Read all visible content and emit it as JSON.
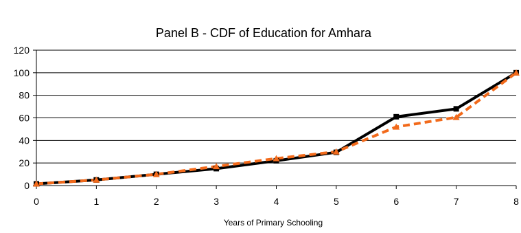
{
  "chart_data": {
    "type": "line",
    "title": "Panel B - CDF of Education for Amhara",
    "xlabel": "Years of Primary Schooling",
    "ylabel": "",
    "x": [
      0,
      1,
      2,
      3,
      4,
      5,
      6,
      7,
      8
    ],
    "xlim": [
      0,
      8
    ],
    "ylim": [
      0,
      120
    ],
    "yticks": [
      0,
      20,
      40,
      60,
      80,
      100,
      120
    ],
    "grid": "horizontal",
    "series": [
      {
        "color": "#000000",
        "style": "solid",
        "marker": "square",
        "values": [
          1.5,
          5,
          10,
          15,
          22,
          29.5,
          61,
          68,
          100
        ]
      },
      {
        "color": "#f26a1b",
        "style": "dashed",
        "marker": "triangle",
        "values": [
          1.5,
          5,
          10,
          17,
          24,
          30,
          52,
          60.5,
          100
        ]
      }
    ]
  }
}
